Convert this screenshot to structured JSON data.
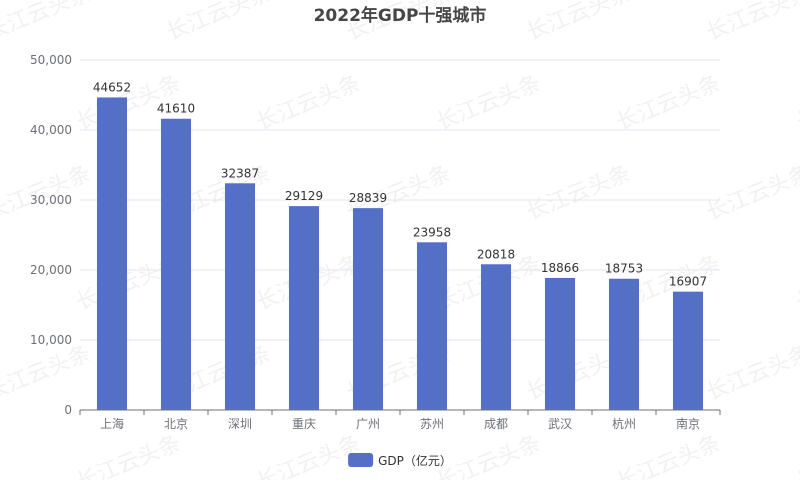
{
  "watermark": {
    "text": "长江云头条"
  },
  "chart_data": {
    "type": "bar",
    "title": "2022年GDP十强城市",
    "categories": [
      "上海",
      "北京",
      "深圳",
      "重庆",
      "广州",
      "苏州",
      "成都",
      "武汉",
      "杭州",
      "南京"
    ],
    "series": [
      {
        "name": "GDP（亿元）",
        "values": [
          44652,
          41610,
          32387,
          29129,
          28839,
          23958,
          20818,
          18866,
          18753,
          16907
        ],
        "color": "#5470c6"
      }
    ],
    "ylim": [
      0,
      50000
    ],
    "yticks": [
      0,
      10000,
      20000,
      30000,
      40000,
      50000
    ],
    "ytick_labels": [
      "0",
      "10,000",
      "20,000",
      "30,000",
      "40,000",
      "50,000"
    ],
    "grid": true,
    "data_labels": true,
    "legend_position": "bottom-center"
  }
}
